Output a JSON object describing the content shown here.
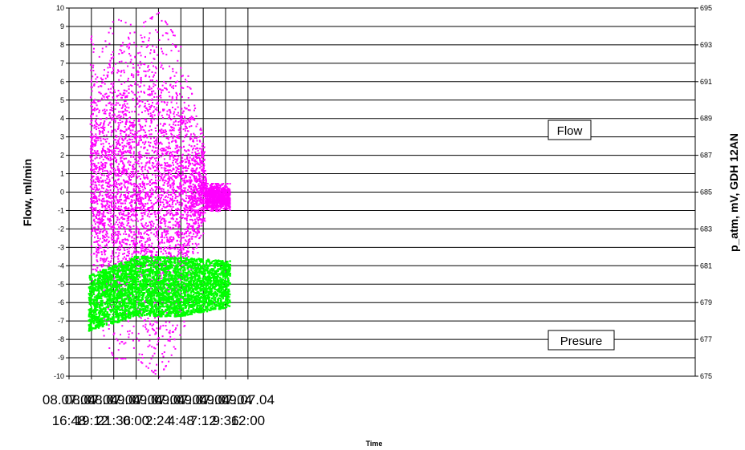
{
  "chart_data": {
    "type": "scatter",
    "title": "",
    "xlabel": "Time",
    "ylabel": "Flow, ml/min",
    "y2label": "p_atm, mV, GDH 12AN",
    "xlim_hours": [
      16.8,
      84.0
    ],
    "x_ticks": [
      {
        "date": "08.07.04",
        "time": "16:48"
      },
      {
        "date": "08.07.04",
        "time": "19:12"
      },
      {
        "date": "08.07.04",
        "time": "21:36"
      },
      {
        "date": "09.07.04",
        "time": "0:00"
      },
      {
        "date": "09.07.04",
        "time": "2:24"
      },
      {
        "date": "09.07.04",
        "time": "4:48"
      },
      {
        "date": "09.07.04",
        "time": "7:12"
      },
      {
        "date": "09.07.04",
        "time": "9:36"
      },
      {
        "date": "09.07.04",
        "time": "12:00"
      }
    ],
    "ylim": [
      -10,
      10
    ],
    "y_ticks": [
      "10",
      "9",
      "8",
      "7",
      "6",
      "5",
      "4",
      "3",
      "2",
      "1",
      "0",
      "-1",
      "-2",
      "-3",
      "-4",
      "-5",
      "-6",
      "-7",
      "-8",
      "-9",
      "-10"
    ],
    "y2lim": [
      675,
      695
    ],
    "y2_ticks": [
      "695",
      "693",
      "691",
      "689",
      "687",
      "685",
      "683",
      "681",
      "679",
      "677",
      "675"
    ],
    "grid": true,
    "series": [
      {
        "name": "Flow",
        "color": "#ff00ff",
        "axis": "left",
        "envelope": [
          {
            "time": "19:00",
            "low": -3.5,
            "high": 9.0
          },
          {
            "time": "19:40",
            "low": -7.0,
            "high": 7.0
          },
          {
            "time": "21:36",
            "low": -9.0,
            "high": 9.5
          },
          {
            "time": "0:00",
            "low": -9.0,
            "high": 9.0
          },
          {
            "time": "2:24",
            "low": -10.0,
            "high": 9.8
          },
          {
            "time": "4:48",
            "low": -8.0,
            "high": 8.0
          },
          {
            "time": "6:30",
            "low": -4.0,
            "high": 4.0
          },
          {
            "time": "7:12",
            "low": -2.0,
            "high": 3.0
          },
          {
            "time": "7:30",
            "low": -1.0,
            "high": 0.5
          },
          {
            "time": "10:00",
            "low": -1.0,
            "high": 0.5
          }
        ]
      },
      {
        "name": "Presure",
        "color": "#00ff00",
        "axis": "right",
        "envelope": [
          {
            "time": "18:50",
            "low": 677.5,
            "high": 680.5
          },
          {
            "time": "0:00",
            "low": 678.3,
            "high": 681.6
          },
          {
            "time": "4:48",
            "low": 678.3,
            "high": 681.5
          },
          {
            "time": "10:00",
            "low": 678.8,
            "high": 681.3
          }
        ]
      }
    ],
    "annotations": [
      {
        "text": "Flow",
        "series": "Flow"
      },
      {
        "text": "Presure",
        "series": "Presure"
      }
    ]
  }
}
